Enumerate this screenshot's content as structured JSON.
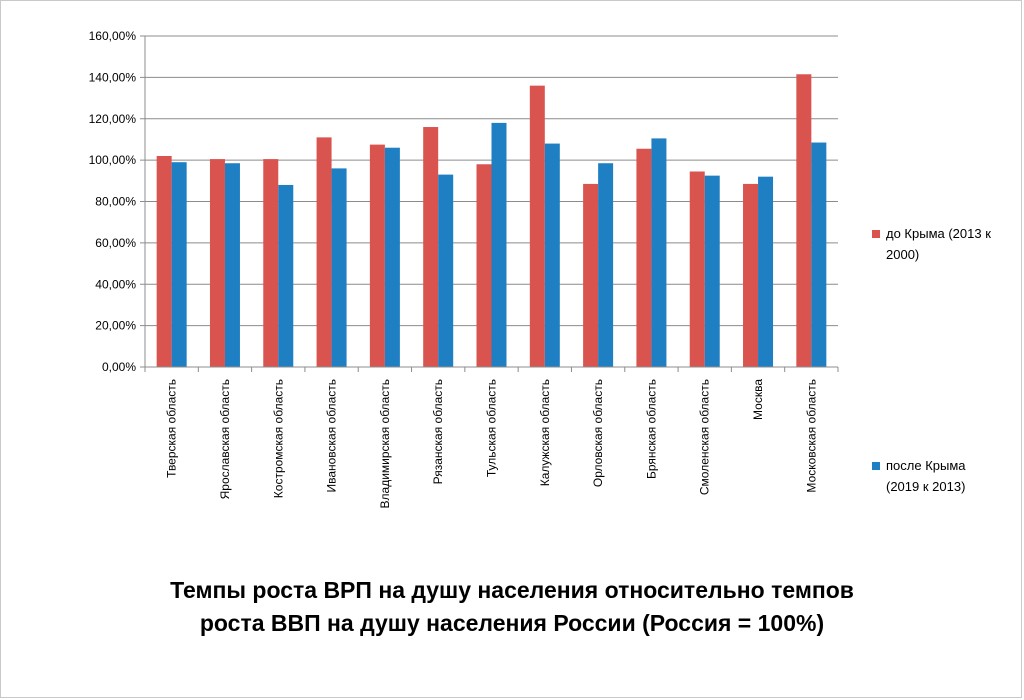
{
  "chart_data": {
    "type": "bar",
    "title_lines": [
      "Темпы роста ВРП на душу населения относительно темпов",
      "роста ВВП на душу населения России (Россия = 100%)"
    ],
    "categories": [
      "Тверская область",
      "Ярославская область",
      "Костромская область",
      "Ивановская область",
      "Владимирская область",
      "Рязанская область",
      "Тульская область",
      "Калужская область",
      "Орловская область",
      "Брянская область",
      "Смоленская область",
      "Москва",
      "Московская область"
    ],
    "series": [
      {
        "name_lines": [
          "до Крыма (2013 к",
          "2000)"
        ],
        "color": "#d9534f",
        "values": [
          102,
          100.5,
          100.5,
          111,
          107.5,
          116,
          98,
          136,
          88.5,
          105.5,
          94.5,
          88.5,
          141.5
        ]
      },
      {
        "name_lines": [
          "после Крыма",
          "(2019 к 2013)"
        ],
        "color": "#1f7fc3",
        "values": [
          99,
          98.5,
          88,
          96,
          106,
          93,
          118,
          108,
          98.5,
          110.5,
          92.5,
          92,
          108.5
        ]
      }
    ],
    "yticks": [
      "0,00%",
      "20,00%",
      "40,00%",
      "60,00%",
      "80,00%",
      "100,00%",
      "120,00%",
      "140,00%",
      "160,00%"
    ],
    "ylim": [
      0,
      160
    ],
    "grid": true,
    "legend": "right"
  }
}
